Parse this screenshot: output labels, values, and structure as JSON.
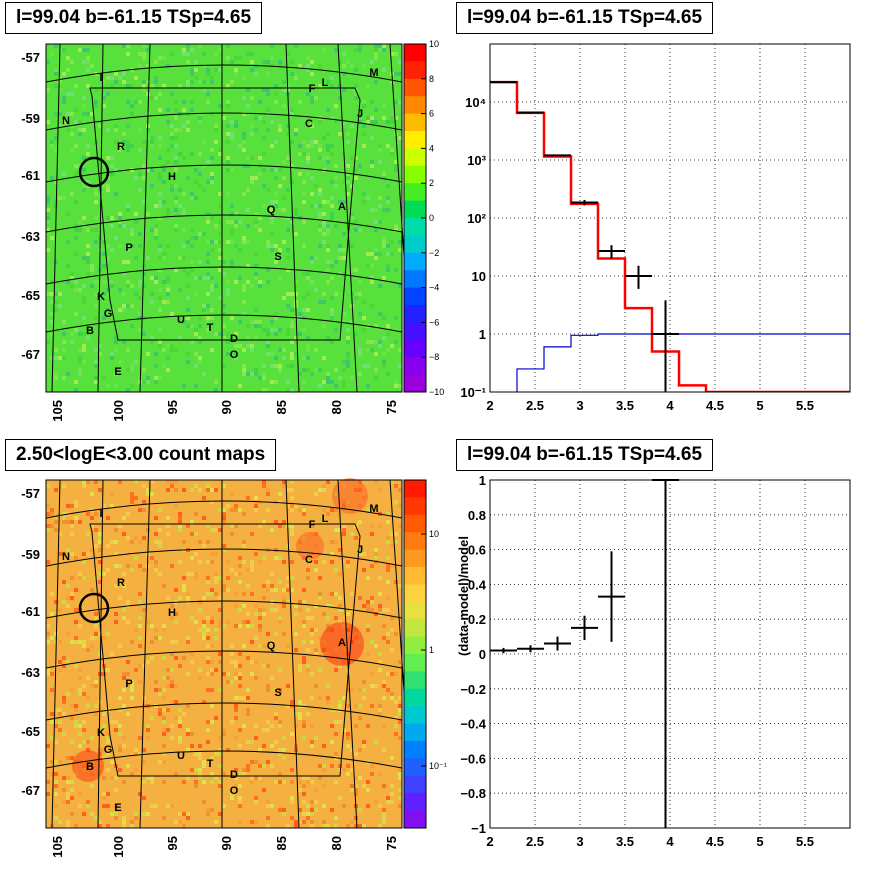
{
  "chart_data": [
    {
      "id": "map_residual",
      "type": "heatmap",
      "title": "l=99.04 b=-61.15 TSp=4.65",
      "yticks": [
        "-57",
        "-59",
        "-61",
        "-63",
        "-65",
        "-67"
      ],
      "xticks": [
        "105",
        "100",
        "95",
        "90",
        "85",
        "80",
        "75"
      ],
      "colorbar": {
        "min": -10,
        "max": 10,
        "ticks": [
          "10",
          "8",
          "6",
          "4",
          "2",
          "0",
          "−2",
          "−4",
          "−6",
          "−8",
          "−10"
        ]
      },
      "sources": [
        "I",
        "N",
        "R",
        "H",
        "P",
        "K",
        "G",
        "B",
        "E",
        "U",
        "T",
        "D",
        "O",
        "Q",
        "S",
        "A",
        "C",
        "F",
        "L",
        "M",
        "J"
      ],
      "colors": {
        "background": "#52e03a",
        "circle": "#000000"
      }
    },
    {
      "id": "spectrum",
      "type": "line",
      "title": "l=99.04 b=-61.15 TSp=4.65",
      "xlim": [
        2,
        6
      ],
      "ylim": [
        0.1,
        100000
      ],
      "ylog": true,
      "xticks": [
        "2",
        "2.5",
        "3",
        "3.5",
        "4",
        "4.5",
        "5",
        "5.5"
      ],
      "yticks": [
        "10⁻¹",
        "1",
        "10",
        "10²",
        "10³",
        "10⁴"
      ],
      "grid": true,
      "series": [
        {
          "color": "#ff0000",
          "edges": [
            2.0,
            2.3,
            2.6,
            2.9,
            3.2,
            3.5,
            3.8,
            4.1,
            4.4,
            4.7,
            5.0,
            5.3,
            5.6,
            5.9,
            6.0
          ],
          "values": [
            22000,
            6500,
            1150,
            175,
            20,
            2.8,
            0.5,
            0.13,
            0.1,
            0.1,
            0.1,
            0.1,
            0.1,
            0.1
          ]
        },
        {
          "color": "#0000cc",
          "edges": [
            2.0,
            2.3,
            2.6,
            2.9,
            3.2,
            6.0
          ],
          "values": [
            0.05,
            0.25,
            0.6,
            0.95,
            1.0
          ]
        }
      ],
      "points": [
        {
          "x": 2.15,
          "y": 22000,
          "xerr": 0.15
        },
        {
          "x": 2.45,
          "y": 6600,
          "xerr": 0.15
        },
        {
          "x": 2.75,
          "y": 1200,
          "xerr": 0.15
        },
        {
          "x": 3.05,
          "y": 185,
          "xerr": 0.15,
          "ylo": 165,
          "yhi": 205
        },
        {
          "x": 3.35,
          "y": 27,
          "xerr": 0.15,
          "ylo": 20,
          "yhi": 34
        },
        {
          "x": 3.65,
          "y": 10,
          "xerr": 0.15,
          "ylo": 6,
          "yhi": 15
        },
        {
          "x": 3.95,
          "y": 1,
          "xerr": 0.15,
          "ylo": 0.05,
          "yhi": 3.8
        }
      ]
    },
    {
      "id": "map_counts",
      "type": "heatmap",
      "title": "2.50<logE<3.00 count maps",
      "yticks": [
        "-57",
        "-59",
        "-61",
        "-63",
        "-65",
        "-67"
      ],
      "xticks": [
        "105",
        "100",
        "95",
        "90",
        "85",
        "80",
        "75"
      ],
      "colorbar": {
        "log": true,
        "ticks": [
          "10",
          "1",
          "10⁻¹"
        ]
      },
      "sources": [
        "I",
        "N",
        "R",
        "H",
        "P",
        "K",
        "G",
        "B",
        "E",
        "U",
        "T",
        "D",
        "O",
        "Q",
        "S",
        "A",
        "C",
        "F",
        "L",
        "M",
        "J"
      ],
      "colors": {
        "background": "#f0a83c"
      }
    },
    {
      "id": "residual",
      "type": "scatter",
      "title": "l=99.04 b=-61.15 TSp=4.65",
      "ylabel": "(data-model)/model",
      "xlim": [
        2,
        6
      ],
      "ylim": [
        -1,
        1
      ],
      "xticks": [
        "2",
        "2.5",
        "3",
        "3.5",
        "4",
        "4.5",
        "5",
        "5.5"
      ],
      "yticks": [
        "1",
        "0.8",
        "0.6",
        "0.4",
        "0.2",
        "0",
        "−0.2",
        "−0.4",
        "−0.6",
        "−0.8",
        "−1"
      ],
      "grid": true,
      "points": [
        {
          "x": 2.15,
          "y": 0.02,
          "xerr": 0.15,
          "yerr": 0.015
        },
        {
          "x": 2.45,
          "y": 0.03,
          "xerr": 0.15,
          "yerr": 0.02
        },
        {
          "x": 2.75,
          "y": 0.06,
          "xerr": 0.15,
          "yerr": 0.04
        },
        {
          "x": 3.05,
          "y": 0.15,
          "xerr": 0.15,
          "yerr": 0.07
        },
        {
          "x": 3.35,
          "y": 0.33,
          "xerr": 0.15,
          "yerr": 0.26
        },
        {
          "x": 3.95,
          "y": 1.0,
          "xerr": 0.15,
          "yerr": 2.2
        }
      ]
    }
  ]
}
